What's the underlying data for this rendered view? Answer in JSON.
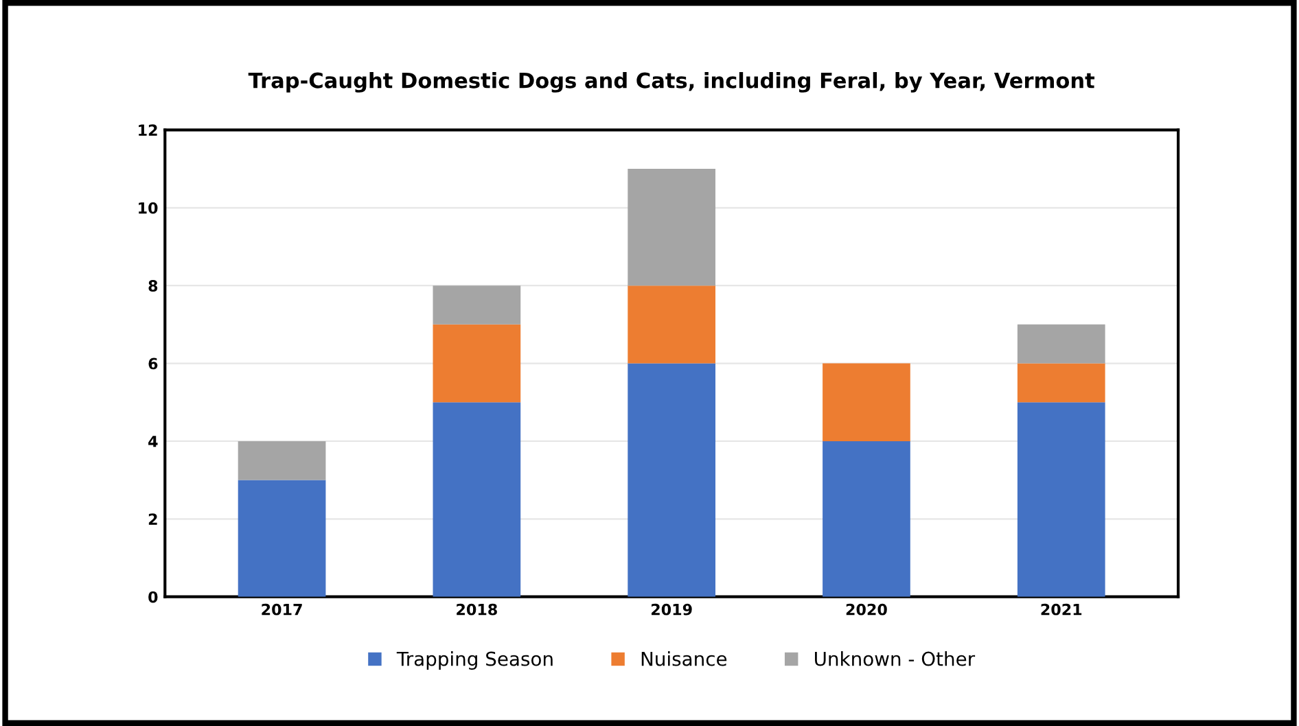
{
  "chart_data": {
    "type": "bar",
    "title": "Trap-Caught Domestic Dogs and Cats, including Feral, by Year, Vermont",
    "categories": [
      "2017",
      "2018",
      "2019",
      "2020",
      "2021"
    ],
    "stacked": true,
    "series": [
      {
        "name": "Trapping Season",
        "color": "#4472c4",
        "values": [
          3,
          5,
          6,
          4,
          5
        ]
      },
      {
        "name": "Nuisance",
        "color": "#ed7d31",
        "values": [
          0,
          2,
          2,
          2,
          1
        ]
      },
      {
        "name": "Unknown - Other",
        "color": "#a5a5a5",
        "values": [
          1,
          1,
          3,
          0,
          1
        ]
      }
    ],
    "ylim": [
      0,
      12
    ],
    "yticks": [
      0,
      2,
      4,
      6,
      8,
      10,
      12
    ],
    "grid": "y",
    "legend": "bottom"
  }
}
